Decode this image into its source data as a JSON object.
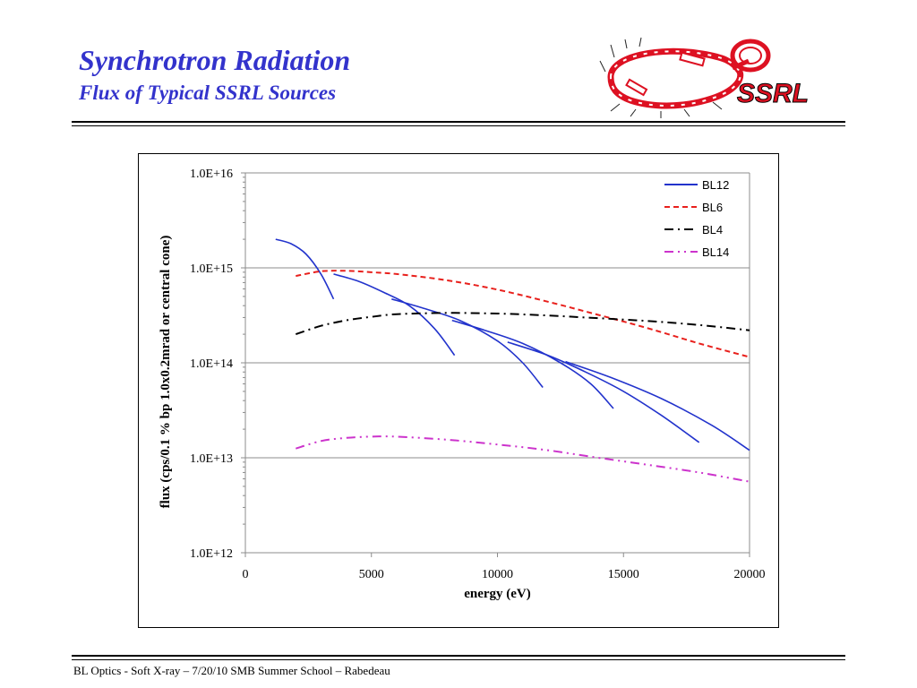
{
  "slide": {
    "title": "Synchrotron Radiation",
    "subtitle": "Flux of Typical SSRL Sources",
    "logo_text": "SSRL",
    "footer": "BL Optics -  Soft X-ray – 7/20/10 SMB Summer School – Rabedeau"
  },
  "colors": {
    "title": "#3333cc",
    "BL12": "#2233cc",
    "BL6": "#e8201c",
    "BL4": "#000000",
    "BL14": "#cc33cc",
    "logo_red": "#dd1122"
  },
  "chart_data": {
    "type": "line",
    "title": "",
    "xlabel": "energy (eV)",
    "ylabel": "flux  (cps/0.1 % bp 1.0x0.2mrad or central cone)",
    "xlim": [
      0,
      20000
    ],
    "ylim": [
      1000000000000.0,
      1e+16
    ],
    "yscale": "log",
    "grid": "horizontal",
    "legend_position": "top-right",
    "x_ticks": [
      0,
      5000,
      10000,
      15000,
      20000
    ],
    "x_tick_labels": [
      "0",
      "5000",
      "10000",
      "15000",
      "20000"
    ],
    "y_ticks": [
      1000000000000.0,
      10000000000000.0,
      100000000000000.0,
      1000000000000000.0,
      1e+16
    ],
    "y_tick_labels": [
      "1.0E+12",
      "1.0E+13",
      "1.0E+14",
      "1.0E+15",
      "1.0E+16"
    ],
    "series": [
      {
        "name": "BL12",
        "style": "solid",
        "segments": [
          [
            [
              1200,
              2000000000000000.0
            ],
            [
              1800,
              1800000000000000.0
            ],
            [
              2400,
              1400000000000000.0
            ],
            [
              3000,
              860000000000000.0
            ],
            [
              3500,
              470000000000000.0
            ]
          ],
          [
            [
              3500,
              860000000000000.0
            ],
            [
              4500,
              720000000000000.0
            ],
            [
              5500,
              550000000000000.0
            ],
            [
              6500,
              400000000000000.0
            ],
            [
              7500,
              230000000000000.0
            ],
            [
              8300,
              120000000000000.0
            ]
          ],
          [
            [
              5800,
              470000000000000.0
            ],
            [
              7000,
              380000000000000.0
            ],
            [
              8500,
              280000000000000.0
            ],
            [
              10000,
              170000000000000.0
            ],
            [
              11000,
              100000000000000.0
            ],
            [
              11800,
              55000000000000.0
            ]
          ],
          [
            [
              8200,
              280000000000000.0
            ],
            [
              9500,
              220000000000000.0
            ],
            [
              11000,
              160000000000000.0
            ],
            [
              12500,
              100000000000000.0
            ],
            [
              13700,
              60000000000000.0
            ],
            [
              14600,
              33000000000000.0
            ]
          ],
          [
            [
              10400,
              165000000000000.0
            ],
            [
              12000,
              120000000000000.0
            ],
            [
              13500,
              80000000000000.0
            ],
            [
              15000,
              50000000000000.0
            ],
            [
              16500,
              28000000000000.0
            ],
            [
              18000,
              14500000000000.0
            ]
          ],
          [
            [
              12700,
              103000000000000.0
            ],
            [
              14500,
              70000000000000.0
            ],
            [
              16500,
              42000000000000.0
            ],
            [
              18500,
              22000000000000.0
            ],
            [
              20000,
              12000000000000.0
            ]
          ]
        ]
      },
      {
        "name": "BL6",
        "style": "dashed",
        "segments": [
          [
            [
              2000,
              820000000000000.0
            ],
            [
              3000,
              920000000000000.0
            ],
            [
              4000,
              930000000000000.0
            ],
            [
              5000,
              900000000000000.0
            ],
            [
              6000,
              860000000000000.0
            ],
            [
              8000,
              740000000000000.0
            ],
            [
              10000,
              590000000000000.0
            ],
            [
              12000,
              440000000000000.0
            ],
            [
              14000,
              320000000000000.0
            ],
            [
              16000,
              230000000000000.0
            ],
            [
              18000,
              160000000000000.0
            ],
            [
              20000,
              115000000000000.0
            ]
          ]
        ]
      },
      {
        "name": "BL4",
        "style": "dash-dot",
        "segments": [
          [
            [
              2000,
              200000000000000.0
            ],
            [
              3000,
              245000000000000.0
            ],
            [
              4000,
              280000000000000.0
            ],
            [
              5000,
              305000000000000.0
            ],
            [
              6000,
              325000000000000.0
            ],
            [
              8000,
              335000000000000.0
            ],
            [
              10000,
              330000000000000.0
            ],
            [
              12000,
              315000000000000.0
            ],
            [
              14000,
              295000000000000.0
            ],
            [
              16000,
              275000000000000.0
            ],
            [
              18000,
              250000000000000.0
            ],
            [
              20000,
              220000000000000.0
            ]
          ]
        ]
      },
      {
        "name": "BL14",
        "style": "dash-dot-dot",
        "segments": [
          [
            [
              2000,
              12500000000000.0
            ],
            [
              3000,
              15000000000000.0
            ],
            [
              4000,
              16200000000000.0
            ],
            [
              5000,
              16700000000000.0
            ],
            [
              6000,
              16700000000000.0
            ],
            [
              8000,
              15500000000000.0
            ],
            [
              10000,
              13800000000000.0
            ],
            [
              12000,
              12000000000000.0
            ],
            [
              14000,
              10000000000000.0
            ],
            [
              16000,
              8400000000000.0
            ],
            [
              18000,
              7000000000000.0
            ],
            [
              20000,
              5600000000000.0
            ]
          ]
        ]
      }
    ]
  }
}
